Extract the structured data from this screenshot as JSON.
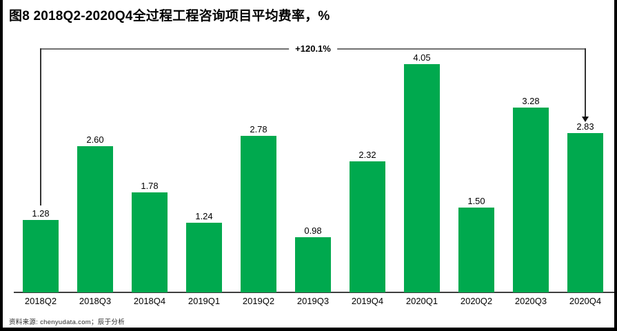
{
  "header": {
    "title": "图8 2018Q2-2020Q4全过程工程咨询项目平均费率，%"
  },
  "annotation": {
    "growth_label": "+120.1%"
  },
  "footer": {
    "source_note": "资料来源: chenyudata.com；辰于分析"
  },
  "colors": {
    "bar-green": "#00A94E",
    "bracket-gray": "#707070",
    "bracket-dark": "#333333",
    "axis-gray": "#3F3F3F",
    "text-black": "#000000",
    "edge-black": "#000000"
  },
  "chart_data": {
    "type": "bar",
    "title": "图8 2018Q2-2020Q4全过程工程咨询项目平均费率，%",
    "categories": [
      "2018Q2",
      "2018Q3",
      "2018Q4",
      "2019Q1",
      "2019Q2",
      "2019Q3",
      "2019Q4",
      "2020Q1",
      "2020Q2",
      "2020Q3",
      "2020Q4"
    ],
    "values": [
      1.28,
      2.6,
      1.78,
      1.24,
      2.78,
      0.98,
      2.32,
      4.05,
      1.5,
      3.28,
      2.83
    ],
    "unit": "%",
    "ylim": [
      0,
      4.4
    ],
    "grid": false,
    "legend": "none",
    "data_labels": true,
    "bar_color": "#00A94E",
    "annotation": {
      "text": "+120.1%",
      "from_category": "2018Q2",
      "to_category": "2020Q4"
    },
    "source": "资料来源: chenyudata.com；辰于分析"
  }
}
